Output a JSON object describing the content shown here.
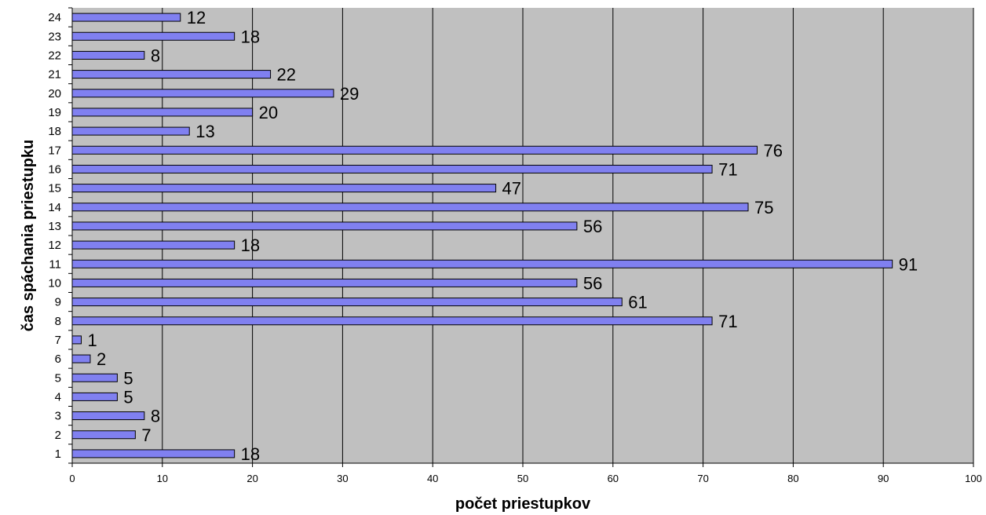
{
  "chart_data": {
    "type": "bar",
    "orientation": "horizontal",
    "categories": [
      "1",
      "2",
      "3",
      "4",
      "5",
      "6",
      "7",
      "8",
      "9",
      "10",
      "11",
      "12",
      "13",
      "14",
      "15",
      "16",
      "17",
      "18",
      "19",
      "20",
      "21",
      "22",
      "23",
      "24"
    ],
    "values": [
      18,
      7,
      8,
      5,
      5,
      2,
      1,
      71,
      61,
      56,
      91,
      18,
      56,
      75,
      47,
      71,
      76,
      13,
      20,
      29,
      22,
      8,
      18,
      12
    ],
    "xlabel": "počet priestupkov",
    "ylabel": "čas spáchania priestupku",
    "xlim": [
      0,
      100
    ],
    "xticks": [
      0,
      10,
      20,
      30,
      40,
      50,
      60,
      70,
      80,
      90,
      100
    ],
    "grid": "vertical",
    "colors": {
      "bar_fill": "#8080f0",
      "bar_stroke": "#000000",
      "plot_background": "#c0c0c0",
      "gridline": "#000000"
    }
  }
}
